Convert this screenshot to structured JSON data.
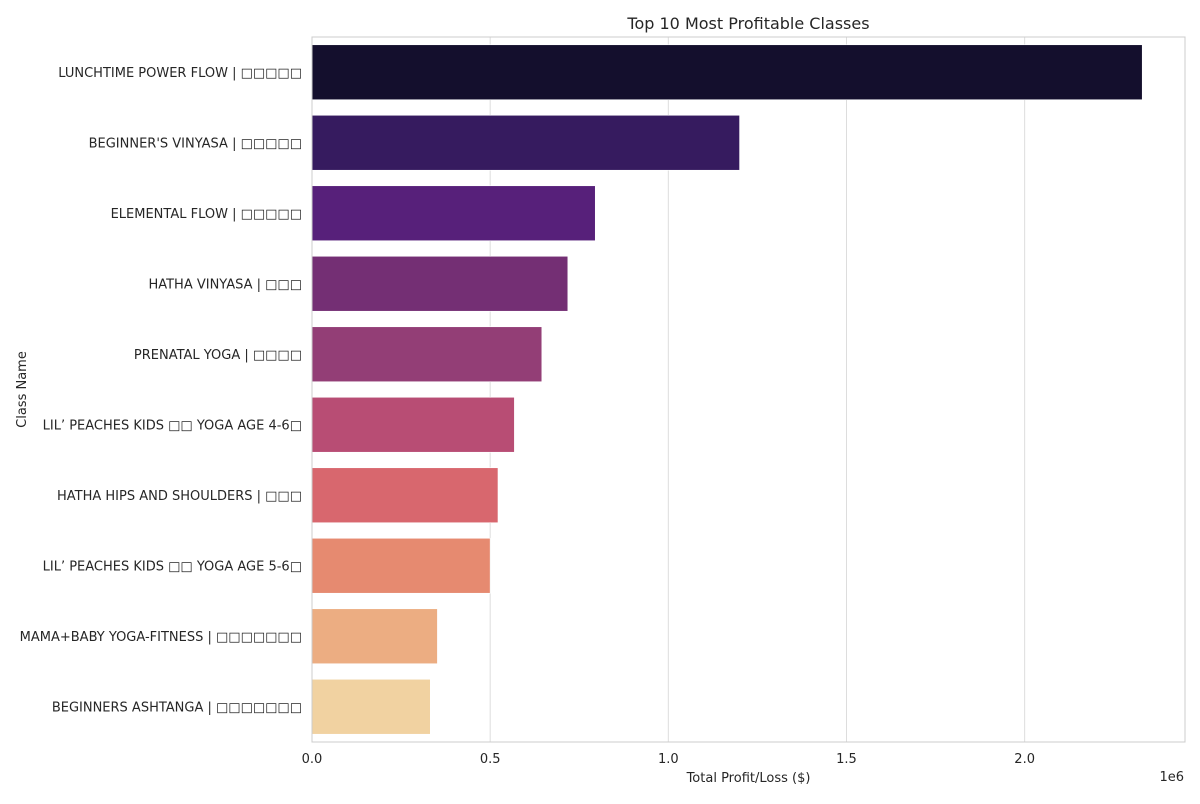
{
  "chart_data": {
    "type": "bar",
    "orientation": "horizontal",
    "title": "Top 10 Most Profitable Classes",
    "xlabel": "Total Profit/Loss ($)",
    "ylabel": "Class Name",
    "x_scale_label": "1e6",
    "xlim": [
      0,
      2450000
    ],
    "xticks": [
      {
        "value": 0,
        "label": "0.0"
      },
      {
        "value": 500000,
        "label": "0.5"
      },
      {
        "value": 1000000,
        "label": "1.0"
      },
      {
        "value": 1500000,
        "label": "1.5"
      },
      {
        "value": 2000000,
        "label": "2.0"
      }
    ],
    "grid": "vertical",
    "categories": [
      "LUNCHTIME POWER FLOW | □□□□□",
      "BEGINNER'S VINYASA | □□□□□",
      "ELEMENTAL FLOW | □□□□□",
      "HATHA VINYASA | □□□",
      "PRENATAL YOGA | □□□□",
      "LIL’ PEACHES KIDS □□ YOGA AGE 4-6□",
      "HATHA HIPS AND SHOULDERS | □□□",
      "LIL’ PEACHES KIDS □□ YOGA AGE 5-6□",
      "MAMA+BABY YOGA-FITNESS | □□□□□□□",
      "BEGINNERS ASHTANGA | □□□□□□□"
    ],
    "values": [
      2330000,
      1200000,
      795000,
      718000,
      645000,
      568000,
      522000,
      500000,
      352000,
      332000
    ],
    "colors": [
      "#140f2d",
      "#361b5f",
      "#57207a",
      "#742f74",
      "#933e76",
      "#b84d74",
      "#d8676e",
      "#e68a70",
      "#ecad82",
      "#f1d2a1"
    ]
  }
}
